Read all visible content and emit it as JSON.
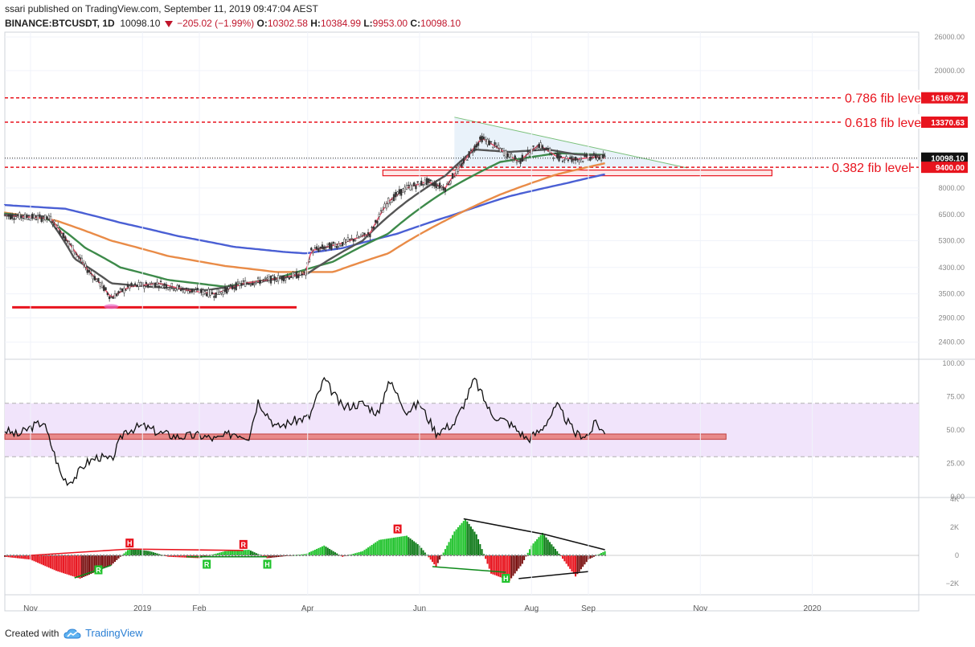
{
  "header": {
    "author_line": "ssari published on TradingView.com, September 11, 2019 09:47:04 AEST",
    "symbol": "BINANCE:BTCUSDT, 1D",
    "last": "10098.10",
    "change": "−205.02 (−1.99%)",
    "o_label": "O:",
    "o_value": "10302.58",
    "h_label": "H:",
    "h_value": "10384.99",
    "l_label": "L:",
    "l_value": "9953.00",
    "c_label": "C:",
    "c_value": "10098.10"
  },
  "footer": {
    "created_with": "Created with",
    "brand": "TradingView",
    "logo_icon": "tradingview-cloud-icon"
  },
  "colors": {
    "up": "#26a69a",
    "down": "#ef5350",
    "fib": "#e8141e",
    "ma_fast": "#e8506a",
    "ma_dark": "#555555",
    "ma_green": "#3d8a4a",
    "ma_orange": "#e98b47",
    "ma_blue": "#4a5fd4",
    "macd_up": "#22c32e",
    "macd_down": "#e8141e",
    "rsi_band": "#f1e4fb"
  },
  "chart_data": [
    {
      "type": "line",
      "panel": "price",
      "y_scale": "log",
      "y_ticks": [
        "26000.00",
        "20000.00",
        "10000.00",
        "8000.00",
        "6500.00",
        "5300.00",
        "4300.00",
        "3500.00",
        "2900.00",
        "2400.00"
      ],
      "ylim": [
        2100,
        27000
      ],
      "x_ticks": [
        "Nov",
        "2019",
        "Feb",
        "Apr",
        "Jun",
        "Aug",
        "Sep",
        "Nov",
        "2020"
      ],
      "xlim": [
        "2018-10-18",
        "2020-02-28"
      ],
      "price_labels": [
        {
          "value": 16169.72,
          "text": "16169.72",
          "style": "fib"
        },
        {
          "value": 13370.63,
          "text": "13370.63",
          "style": "fib"
        },
        {
          "value": 10098.1,
          "text": "10098.10",
          "style": "last"
        },
        {
          "value": 9400.0,
          "text": "9400.00",
          "style": "fib"
        }
      ],
      "fib_levels": [
        {
          "value": 16169.72,
          "label": "0.786 fib level"
        },
        {
          "value": 13370.63,
          "label": "0.618 fib level"
        },
        {
          "value": 9400.0,
          "label": "0.382 fib level"
        }
      ],
      "last_price": 10098.1,
      "support_line": {
        "x": [
          "2018-10-22",
          "2019-03-26"
        ],
        "y": 3150
      },
      "support_marker": {
        "x": "2018-12-15",
        "y": 3170
      },
      "resistance_zone": {
        "x": [
          "2019-05-12",
          "2019-12-10"
        ],
        "y": [
          8800,
          9200
        ]
      },
      "triangle": {
        "apex_x": "2019-06-20",
        "apex_y": 13900,
        "base_x": "2019-06-20",
        "base_y": 9350,
        "end_x": "2019-10-25",
        "end_y": 9350
      },
      "series": [
        {
          "color": "ma_blue",
          "x": [
            "2018-10-18",
            "2018-11-20",
            "2018-12-20",
            "2019-01-20",
            "2019-02-20",
            "2019-03-20",
            "2019-03-31",
            "2019-04-20",
            "2019-05-20",
            "2019-06-20",
            "2019-07-20",
            "2019-08-20",
            "2019-09-10"
          ],
          "y": [
            7000,
            6800,
            6100,
            5500,
            5050,
            4850,
            4800,
            5000,
            5600,
            6500,
            7500,
            8300,
            8900
          ]
        },
        {
          "color": "ma_orange",
          "x": [
            "2018-10-18",
            "2018-11-15",
            "2018-12-15",
            "2019-01-15",
            "2019-02-15",
            "2019-03-15",
            "2019-04-15",
            "2019-05-15",
            "2019-06-15",
            "2019-07-15",
            "2019-08-15",
            "2019-09-10"
          ],
          "y": [
            6600,
            6200,
            5300,
            4700,
            4350,
            4150,
            4150,
            4800,
            6200,
            7600,
            8900,
            9700
          ]
        },
        {
          "color": "ma_green",
          "x": [
            "2018-10-18",
            "2018-11-10",
            "2018-12-01",
            "2018-12-20",
            "2019-01-15",
            "2019-02-15",
            "2019-03-15",
            "2019-04-15",
            "2019-05-15",
            "2019-06-15",
            "2019-07-15",
            "2019-08-15",
            "2019-09-10"
          ],
          "y": [
            6550,
            6300,
            5000,
            4300,
            3900,
            3700,
            3950,
            4500,
            5600,
            7800,
            9800,
            10500,
            10350
          ]
        },
        {
          "color": "ma_dark",
          "x": [
            "2018-10-18",
            "2018-11-10",
            "2018-11-25",
            "2018-12-15",
            "2019-01-05",
            "2019-02-05",
            "2019-03-01",
            "2019-04-01",
            "2019-05-01",
            "2019-05-25",
            "2019-06-15",
            "2019-07-01",
            "2019-07-20",
            "2019-08-10",
            "2019-08-25",
            "2019-09-10"
          ],
          "y": [
            6500,
            6400,
            4600,
            3800,
            3700,
            3600,
            3800,
            4100,
            5300,
            7200,
            8800,
            10800,
            10600,
            10800,
            10400,
            10300
          ]
        },
        {
          "color": "ma_fast",
          "x": [
            "2018-10-18",
            "2018-11-12",
            "2018-11-22",
            "2018-12-01",
            "2018-12-15",
            "2018-12-25",
            "2019-01-10",
            "2019-01-25",
            "2019-02-10",
            "2019-02-25",
            "2019-03-10",
            "2019-03-31",
            "2019-04-03",
            "2019-04-20",
            "2019-05-05",
            "2019-05-15",
            "2019-05-25",
            "2019-06-05",
            "2019-06-15",
            "2019-06-25",
            "2019-07-05",
            "2019-07-15",
            "2019-07-25",
            "2019-08-05",
            "2019-08-15",
            "2019-08-25",
            "2019-09-05",
            "2019-09-10"
          ],
          "y": [
            6450,
            6300,
            5200,
            4300,
            3400,
            3700,
            3800,
            3600,
            3500,
            3800,
            3900,
            4100,
            4900,
            5200,
            5600,
            7200,
            8000,
            8400,
            8000,
            9800,
            11800,
            10800,
            9800,
            11200,
            10200,
            10000,
            10200,
            10100
          ]
        }
      ]
    },
    {
      "type": "line",
      "panel": "rsi",
      "y_ticks": [
        "100.00",
        "75.00",
        "50.00",
        "25.00",
        "0.00"
      ],
      "ylim": [
        0,
        100
      ],
      "band": [
        30,
        70
      ],
      "level_zone": {
        "x": [
          "2018-10-18",
          "2019-11-15"
        ],
        "y": [
          43,
          47
        ]
      },
      "series": [
        {
          "color": "#111111",
          "x": [
            "2018-10-18",
            "2018-10-25",
            "2018-11-01",
            "2018-11-08",
            "2018-11-14",
            "2018-11-18",
            "2018-11-22",
            "2018-11-26",
            "2018-12-01",
            "2018-12-08",
            "2018-12-15",
            "2018-12-22",
            "2019-01-01",
            "2019-01-10",
            "2019-01-20",
            "2019-02-01",
            "2019-02-10",
            "2019-02-20",
            "2019-02-28",
            "2019-03-05",
            "2019-03-15",
            "2019-03-25",
            "2019-04-02",
            "2019-04-10",
            "2019-04-20",
            "2019-05-01",
            "2019-05-10",
            "2019-05-15",
            "2019-05-25",
            "2019-06-01",
            "2019-06-10",
            "2019-06-20",
            "2019-06-26",
            "2019-07-01",
            "2019-07-10",
            "2019-07-20",
            "2019-07-30",
            "2019-08-06",
            "2019-08-15",
            "2019-08-25",
            "2019-09-01",
            "2019-09-05",
            "2019-09-10"
          ],
          "y": [
            50,
            46,
            52,
            56,
            32,
            15,
            11,
            16,
            25,
            30,
            27,
            49,
            53,
            48,
            45,
            46,
            43,
            48,
            45,
            72,
            52,
            57,
            60,
            88,
            67,
            70,
            62,
            88,
            64,
            70,
            48,
            55,
            72,
            88,
            62,
            55,
            43,
            50,
            68,
            47,
            46,
            56,
            47
          ]
        }
      ]
    },
    {
      "type": "bar",
      "panel": "macd-histogram",
      "y_ticks": [
        "4K",
        "2K",
        "0",
        "−2K"
      ],
      "ylim": [
        -2800,
        4000
      ],
      "envelope": {
        "x": [
          "2018-10-18",
          "2018-11-01",
          "2018-11-15",
          "2018-11-28",
          "2018-12-15",
          "2018-12-25",
          "2019-01-05",
          "2019-01-15",
          "2019-02-01",
          "2019-02-15",
          "2019-02-28",
          "2019-03-10",
          "2019-03-31",
          "2019-04-10",
          "2019-04-20",
          "2019-05-01",
          "2019-05-10",
          "2019-05-20",
          "2019-05-25",
          "2019-06-01",
          "2019-06-10",
          "2019-06-20",
          "2019-06-26",
          "2019-07-02",
          "2019-07-10",
          "2019-07-20",
          "2019-07-27",
          "2019-08-01",
          "2019-08-07",
          "2019-08-15",
          "2019-08-25",
          "2019-09-01",
          "2019-09-10"
        ],
        "y": [
          -100,
          -300,
          -1100,
          -1650,
          -700,
          500,
          300,
          -100,
          -200,
          300,
          400,
          -200,
          100,
          700,
          -100,
          300,
          1100,
          1300,
          1400,
          700,
          -800,
          1700,
          2600,
          1500,
          -1300,
          -1800,
          -600,
          700,
          1600,
          300,
          -1500,
          -300,
          300
        ]
      },
      "annotations": [
        {
          "text": "H",
          "x": "2018-12-25",
          "y": 450,
          "color": "macd_down",
          "placement": "above"
        },
        {
          "text": "R",
          "x": "2019-02-25",
          "y": 350,
          "color": "macd_down",
          "placement": "above"
        },
        {
          "text": "R",
          "x": "2019-05-20",
          "y": 1450,
          "color": "macd_down",
          "placement": "above"
        },
        {
          "text": "R",
          "x": "2018-12-08",
          "y": -600,
          "color": "macd_up",
          "placement": "below"
        },
        {
          "text": "R",
          "x": "2019-02-05",
          "y": -200,
          "color": "macd_up",
          "placement": "below"
        },
        {
          "text": "H",
          "x": "2019-03-10",
          "y": -200,
          "color": "macd_up",
          "placement": "below"
        },
        {
          "text": "H",
          "x": "2019-07-18",
          "y": -1200,
          "color": "macd_up",
          "placement": "below"
        }
      ],
      "trend_lines": [
        {
          "color": "#e8141e",
          "x": [
            "2018-11-01",
            "2018-12-25",
            "2019-02-25"
          ],
          "y": [
            0,
            450,
            350
          ]
        },
        {
          "color": "#0d8a1a",
          "x": [
            "2018-11-25",
            "2018-12-15"
          ],
          "y": [
            -1600,
            -700
          ]
        },
        {
          "color": "#0d8a1a",
          "x": [
            "2019-01-25",
            "2019-03-10"
          ],
          "y": [
            -100,
            -100
          ]
        },
        {
          "color": "#0d8a1a",
          "x": [
            "2019-06-08",
            "2019-07-18"
          ],
          "y": [
            -800,
            -1200
          ]
        },
        {
          "color": "#111111",
          "x": [
            "2019-06-25",
            "2019-08-08",
            "2019-09-10"
          ],
          "y": [
            2600,
            1500,
            400
          ]
        },
        {
          "color": "#111111",
          "x": [
            "2019-07-25",
            "2019-09-01"
          ],
          "y": [
            -1650,
            -1150
          ]
        }
      ]
    }
  ]
}
